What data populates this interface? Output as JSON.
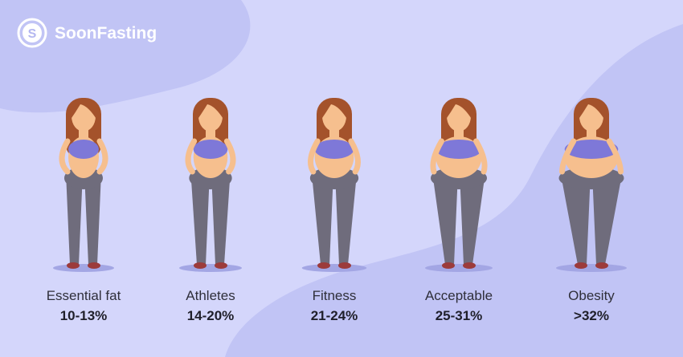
{
  "brand": "SoonFasting",
  "logo_letter": "S",
  "items": [
    {
      "label": "Essential fat",
      "range": "10-13%"
    },
    {
      "label": "Athletes",
      "range": "14-20%"
    },
    {
      "label": "Fitness",
      "range": "21-24%"
    },
    {
      "label": "Acceptable",
      "range": "25-31%"
    },
    {
      "label": "Obesity",
      "range": ">32%"
    }
  ]
}
